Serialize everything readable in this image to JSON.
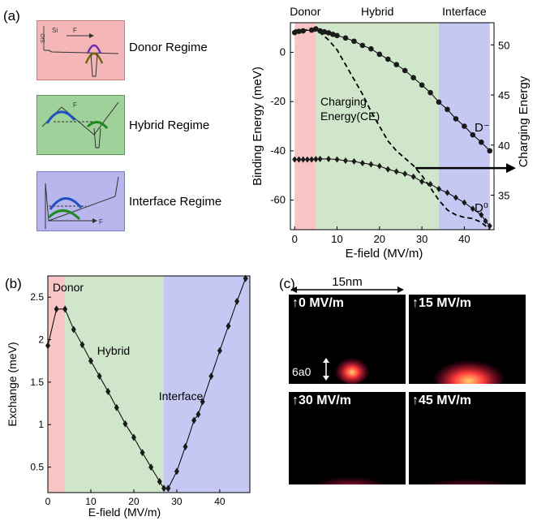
{
  "panels": {
    "a": "(a)",
    "b": "(b)",
    "c": "(c)"
  },
  "regime_legend": {
    "items": [
      {
        "label": "Donor Regime",
        "color": "#f4b6b6",
        "border": "#d47a7a"
      },
      {
        "label": "Hybrid Regime",
        "color": "#9fd19a",
        "border": "#5a9a55"
      },
      {
        "label": "Interface Regime",
        "color": "#b9b6ee",
        "border": "#7a76c9"
      }
    ],
    "icon_text": {
      "sio2": "SiO",
      "si": "Si",
      "f": "F"
    }
  },
  "colors": {
    "donor": "#f8c4c4",
    "hybrid": "#cfe6cb",
    "interface": "#c6c8f4",
    "marker": "#1a1a1a"
  },
  "chart_data": [
    {
      "type": "line",
      "regions": [
        {
          "label": "Donor",
          "from": 0,
          "to": 5
        },
        {
          "label": "Hybrid",
          "from": 5,
          "to": 34
        },
        {
          "label": "Interface",
          "from": 34,
          "to": 46
        }
      ],
      "xlabel": "E-field (MV/m)",
      "ylabel": "Binding Energy (meV)",
      "y2label": "Charging Energy",
      "xlim": [
        -1,
        47
      ],
      "ylim": [
        -72,
        12
      ],
      "xticks": [
        0,
        10,
        20,
        30,
        40
      ],
      "yticks": [
        0,
        -20,
        -40,
        -60
      ],
      "y2ticks": [
        35,
        40,
        45,
        50
      ],
      "y2_mapping": {
        "value_35": -58,
        "value_50": 3
      },
      "annotations": {
        "charging_energy": [
          "Charging",
          "Energy(CE)"
        ]
      },
      "series": [
        {
          "name": "D⁻",
          "x": [
            0,
            1,
            2,
            4,
            5,
            6,
            7,
            8,
            9,
            10,
            12,
            14,
            16,
            18,
            20,
            22,
            24,
            26,
            28,
            30,
            32,
            34,
            36,
            38,
            40,
            42,
            44,
            46
          ],
          "y": [
            8,
            8.5,
            8.7,
            9,
            9.5,
            8.7,
            8.3,
            7.9,
            7.3,
            6.8,
            5.8,
            4.5,
            2.8,
            1.4,
            -0.8,
            -2.8,
            -5,
            -7.4,
            -10.3,
            -13.3,
            -16.4,
            -20.2,
            -23.2,
            -27,
            -30,
            -33.5,
            -36.5,
            -40
          ]
        },
        {
          "name": "D⁰",
          "x": [
            0,
            1,
            2,
            3,
            4,
            5,
            6,
            8,
            10,
            12,
            14,
            16,
            18,
            20,
            22,
            24,
            26,
            28,
            30,
            32,
            34,
            36,
            38,
            40,
            42,
            44,
            45,
            46
          ],
          "y": [
            -43.5,
            -43.5,
            -43.5,
            -43.5,
            -43.5,
            -43.4,
            -43.3,
            -43.3,
            -43.5,
            -44,
            -44.3,
            -45,
            -45.5,
            -46.2,
            -47.5,
            -48.4,
            -49.3,
            -50.5,
            -52.5,
            -53.5,
            -55.5,
            -57,
            -59,
            -61,
            -63.5,
            -66,
            -68.5,
            -70.5
          ]
        },
        {
          "name": "CE",
          "x": [
            0,
            2,
            4,
            6,
            8,
            10,
            12,
            14,
            16,
            18,
            20,
            22,
            24,
            26,
            28,
            30,
            32,
            34,
            36,
            38,
            40,
            42,
            44,
            46
          ],
          "y": [
            9,
            9,
            9,
            8,
            5,
            1,
            -5,
            -11,
            -17,
            -24,
            -30,
            -36,
            -40,
            -43,
            -46,
            -50,
            -55,
            -60,
            -64,
            -66,
            -67,
            -67.5,
            -69,
            -72
          ]
        }
      ]
    },
    {
      "type": "line",
      "regions": [
        {
          "label": "Donor",
          "from": 0,
          "to": 4
        },
        {
          "label": "Hybrid",
          "from": 4,
          "to": 27
        },
        {
          "label": "Interface",
          "from": 27,
          "to": 47
        }
      ],
      "xlabel": "E-field (MV/m)",
      "ylabel": "Exchange (meV)",
      "xlim": [
        0,
        47
      ],
      "ylim": [
        0.2,
        2.75
      ],
      "xticks": [
        0,
        10,
        20,
        30,
        40
      ],
      "yticks": [
        0.5,
        1,
        1.5,
        2,
        2.5
      ],
      "series": [
        {
          "name": "Exchange",
          "x": [
            0,
            2,
            4,
            6,
            8,
            10,
            12,
            14,
            16,
            18,
            20,
            22,
            24,
            26,
            27,
            28,
            30,
            32,
            34,
            35,
            36,
            38,
            40,
            42,
            44,
            46
          ],
          "y": [
            1.93,
            2.36,
            2.36,
            2.12,
            1.94,
            1.75,
            1.57,
            1.39,
            1.2,
            1.01,
            0.85,
            0.67,
            0.5,
            0.33,
            0.25,
            0.25,
            0.45,
            0.74,
            1.05,
            1.12,
            1.27,
            1.57,
            1.87,
            2.16,
            2.45,
            2.72
          ]
        }
      ]
    }
  ],
  "simulations": {
    "scale_label": "15nm",
    "size_label": "6a0",
    "arrow_glyph": "↑",
    "items": [
      {
        "label": "0 MV/m"
      },
      {
        "label": "15 MV/m"
      },
      {
        "label": "30 MV/m"
      },
      {
        "label": "45 MV/m"
      }
    ]
  }
}
